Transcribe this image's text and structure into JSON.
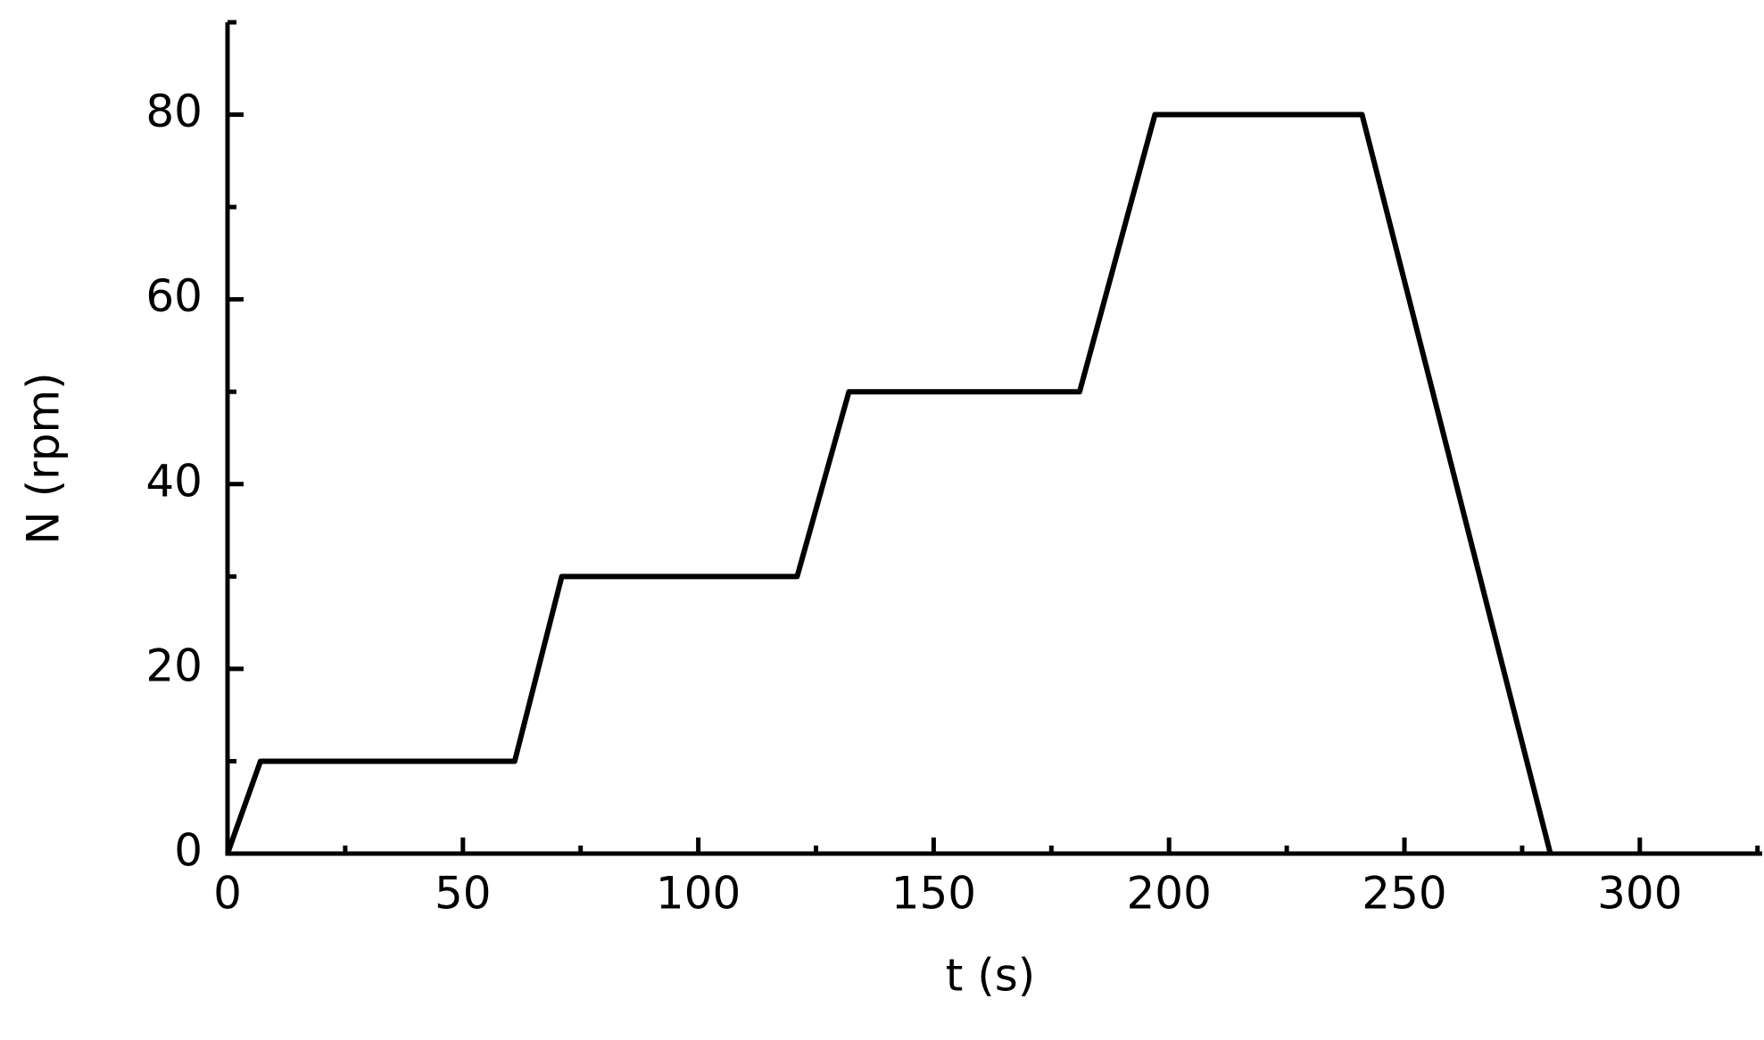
{
  "chart_data": {
    "type": "line",
    "x_label": "t (s)",
    "y_label": "N (rpm)",
    "x": [
      0,
      7,
      61,
      71,
      121,
      132,
      181,
      197,
      241,
      281
    ],
    "series": [
      {
        "color": "#000000",
        "values": [
          0,
          10,
          10,
          30,
          30,
          50,
          50,
          80,
          80,
          0
        ]
      }
    ],
    "xlim": [
      0,
      326
    ],
    "ylim": [
      0,
      90
    ],
    "xticks": [
      0,
      50,
      100,
      150,
      200,
      250,
      300
    ],
    "yticks": [
      0,
      20,
      40,
      60,
      80
    ],
    "xminorticks": [
      25,
      75,
      125,
      175,
      225,
      275,
      325
    ],
    "yminorticks": [
      10,
      30,
      50,
      70,
      90
    ],
    "grid": false
  }
}
